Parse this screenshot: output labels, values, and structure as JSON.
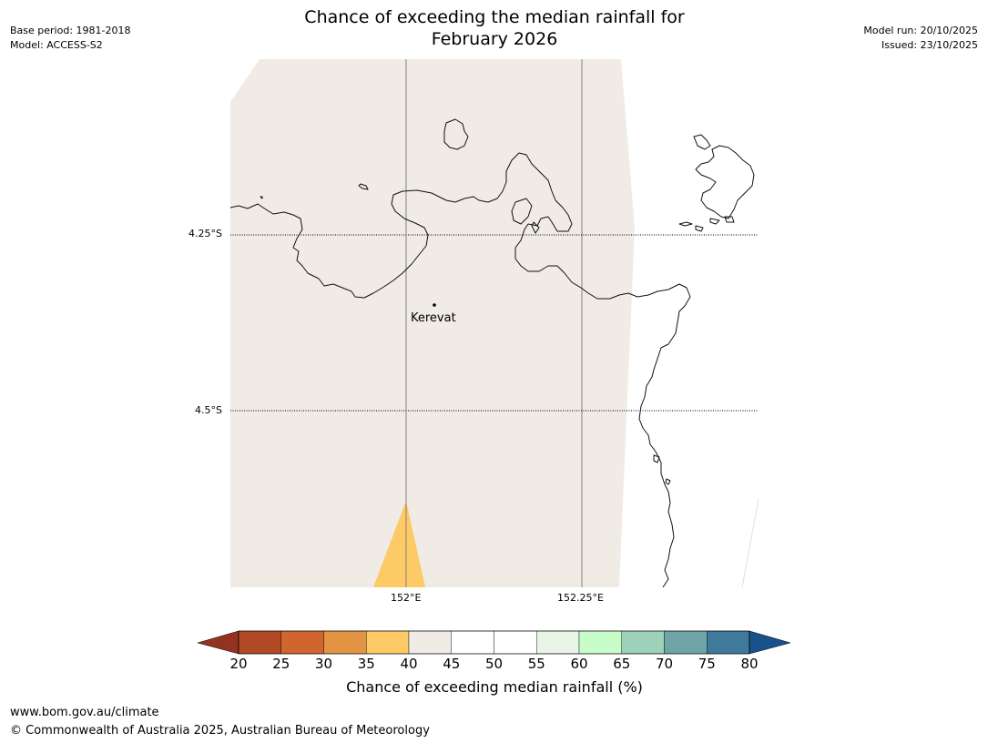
{
  "header": {
    "title_line1": "Chance of exceeding the median rainfall for",
    "title_line2": "February 2026",
    "base_period": "Base period: 1981-2018",
    "model": "Model: ACCESS-S2",
    "model_run": "Model run: 20/10/2025",
    "issued": "Issued: 23/10/2025"
  },
  "map": {
    "lat_labels": [
      "4.25°S",
      "4.5°S"
    ],
    "lon_labels": [
      "152°E",
      "152.25°E"
    ],
    "places": [
      {
        "name": "Kerevat"
      }
    ],
    "colors": {
      "background_region": "#f0ebe5",
      "low_region": "#fdca65",
      "coastline": "#000000",
      "gridline": "#808080"
    }
  },
  "colorbar": {
    "label": "Chance of exceeding median rainfall (%)",
    "ticks": [
      "20",
      "25",
      "30",
      "35",
      "40",
      "45",
      "50",
      "55",
      "60",
      "65",
      "70",
      "75",
      "80"
    ],
    "under_color": "#943222",
    "over_color": "#19528a",
    "segment_colors": [
      "#b34a26",
      "#d0652f",
      "#e39443",
      "#fdca65",
      "#f0ebe5",
      "#ffffff",
      "#ffffff",
      "#e9f5e7",
      "#c8fdca",
      "#9dd1b9",
      "#6fa5a6",
      "#3f7a9a"
    ]
  },
  "footer": {
    "url": "www.bom.gov.au/climate",
    "copyright": "© Commonwealth of Australia 2025, Australian Bureau of Meteorology"
  }
}
